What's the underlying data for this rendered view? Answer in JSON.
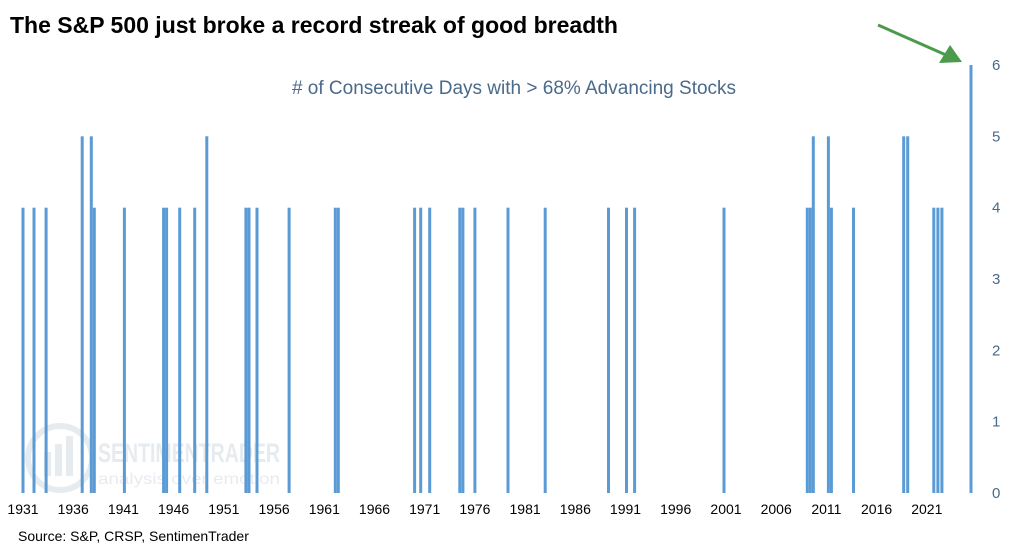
{
  "header": {
    "title": "The S&P 500 just broke a record streak of good breadth"
  },
  "footer": {
    "source": "Source: S&P, CRSP, SentimenTrader"
  },
  "watermark": {
    "brand": "SENTIMENTRADER",
    "tagline": "analysis over emotion"
  },
  "colors": {
    "bar": "#5b9bd5",
    "axis_text": "#4a6a8a",
    "arrow": "#4c9a4c"
  },
  "chart_data": {
    "type": "bar",
    "subtitle": "# of Consecutive Days with > 68% Advancing Stocks",
    "x_ticks": [
      "1931",
      "1936",
      "1941",
      "1946",
      "1951",
      "1956",
      "1961",
      "1966",
      "1971",
      "1976",
      "1981",
      "1986",
      "1991",
      "1996",
      "2001",
      "2006",
      "2011",
      "2016",
      "2021"
    ],
    "xlim": [
      1931.0,
      2025.6
    ],
    "y_ticks": [
      "0",
      "1",
      "2",
      "3",
      "4",
      "5",
      "6"
    ],
    "ylim": [
      0,
      6
    ],
    "y_axis_position": "right",
    "grid": false,
    "annotation": "arrow pointing to latest bar",
    "points": [
      {
        "x": 1931.0,
        "y": 4
      },
      {
        "x": 1932.1,
        "y": 4
      },
      {
        "x": 1933.3,
        "y": 4
      },
      {
        "x": 1936.9,
        "y": 5
      },
      {
        "x": 1937.8,
        "y": 5
      },
      {
        "x": 1938.1,
        "y": 4
      },
      {
        "x": 1941.1,
        "y": 4
      },
      {
        "x": 1945.0,
        "y": 4
      },
      {
        "x": 1945.3,
        "y": 4
      },
      {
        "x": 1946.6,
        "y": 4
      },
      {
        "x": 1948.1,
        "y": 4
      },
      {
        "x": 1949.3,
        "y": 5
      },
      {
        "x": 1953.2,
        "y": 4
      },
      {
        "x": 1953.5,
        "y": 4
      },
      {
        "x": 1954.3,
        "y": 4
      },
      {
        "x": 1957.5,
        "y": 4
      },
      {
        "x": 1962.1,
        "y": 4
      },
      {
        "x": 1962.4,
        "y": 4
      },
      {
        "x": 1970.0,
        "y": 4
      },
      {
        "x": 1970.6,
        "y": 4
      },
      {
        "x": 1971.5,
        "y": 4
      },
      {
        "x": 1974.5,
        "y": 4
      },
      {
        "x": 1974.8,
        "y": 4
      },
      {
        "x": 1976.0,
        "y": 4
      },
      {
        "x": 1979.3,
        "y": 4
      },
      {
        "x": 1983.0,
        "y": 4
      },
      {
        "x": 1989.3,
        "y": 4
      },
      {
        "x": 1991.1,
        "y": 4
      },
      {
        "x": 1991.9,
        "y": 4
      },
      {
        "x": 2000.8,
        "y": 4
      },
      {
        "x": 2009.1,
        "y": 4
      },
      {
        "x": 2009.4,
        "y": 4
      },
      {
        "x": 2009.7,
        "y": 5
      },
      {
        "x": 2011.2,
        "y": 5
      },
      {
        "x": 2011.5,
        "y": 4
      },
      {
        "x": 2013.7,
        "y": 4
      },
      {
        "x": 2018.7,
        "y": 5
      },
      {
        "x": 2019.1,
        "y": 5
      },
      {
        "x": 2021.7,
        "y": 4
      },
      {
        "x": 2022.1,
        "y": 4
      },
      {
        "x": 2022.5,
        "y": 4
      },
      {
        "x": 2025.4,
        "y": 6
      }
    ]
  }
}
